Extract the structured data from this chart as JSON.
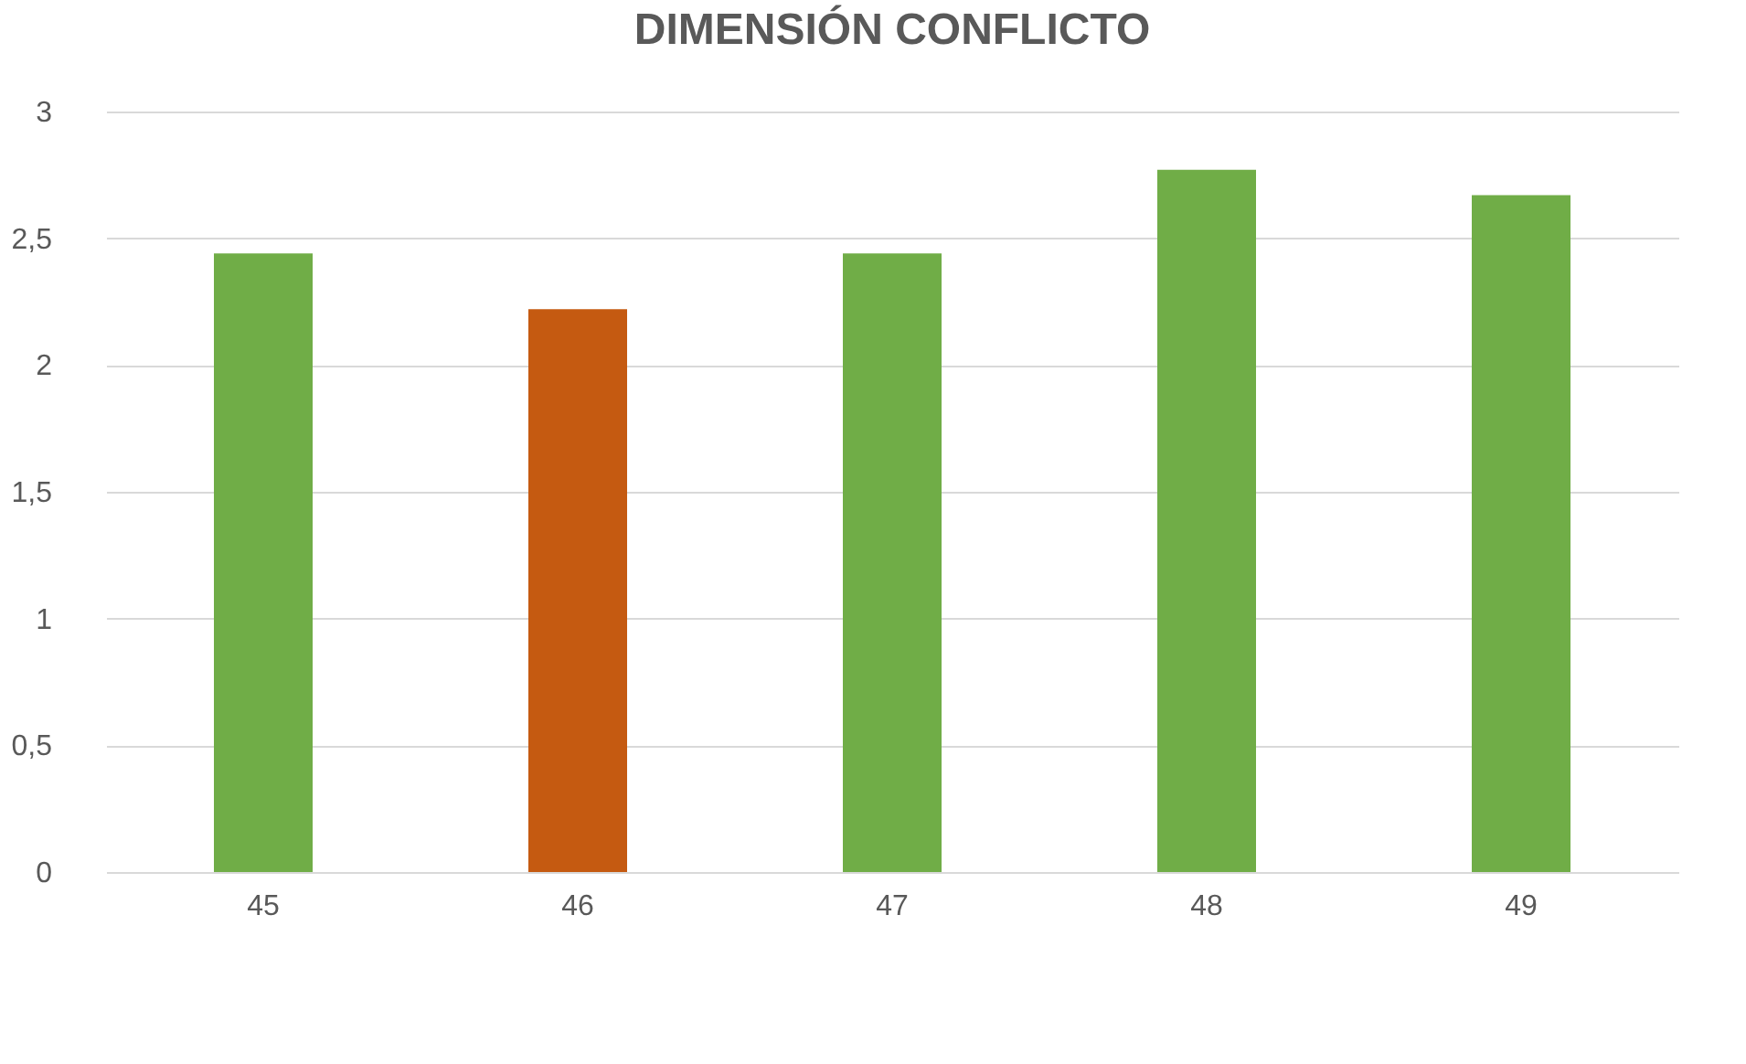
{
  "chart_data": {
    "type": "bar",
    "title": "DIMENSIÓN CONFLICTO",
    "categories": [
      "45",
      "46",
      "47",
      "48",
      "49"
    ],
    "values": [
      2.44,
      2.22,
      2.44,
      2.77,
      2.67
    ],
    "colors": [
      "#70ad47",
      "#c55a11",
      "#70ad47",
      "#70ad47",
      "#70ad47"
    ],
    "ylim": [
      0,
      3
    ],
    "yticks": [
      0,
      {
        "value": 0.5,
        "label": "0,5"
      },
      1,
      {
        "value": 1.5,
        "label": "1,5"
      },
      2,
      {
        "value": 2.5,
        "label": "2,5"
      },
      3
    ],
    "grid": "y",
    "legend": false
  }
}
